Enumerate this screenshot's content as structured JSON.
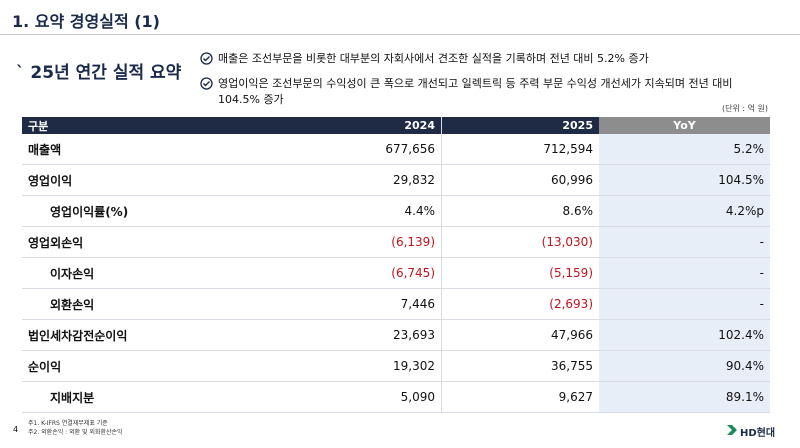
{
  "header": {
    "title": "1. 요약 경영실적 (1)"
  },
  "section": {
    "title": "` 25년 연간 실적 요약",
    "bullets": [
      "매출은 조선부문을 비롯한 대부분의 자회사에서 견조한 실적을 기록하며 전년 대비 5.2% 증가",
      "영업이익은 조선부문의 수익성이 큰 폭으로 개선되고 일렉트릭 등 주력 부문 수익성 개선세가 지속되며 전년 대비 104.5% 증가"
    ]
  },
  "unit": "(단위 : 억 원)",
  "table": {
    "columns": [
      "구분",
      "2024",
      "2025",
      "YoY"
    ],
    "rows": [
      [
        "매출액",
        "677,656",
        "712,594",
        "5.2%"
      ],
      [
        "영업이익",
        "29,832",
        "60,996",
        "104.5%"
      ],
      [
        "영업이익률(%)",
        "4.4%",
        "8.6%",
        "4.2%p"
      ],
      [
        "영업외손익",
        "(6,139)",
        "(13,030)",
        "-"
      ],
      [
        "이자손익",
        "(6,745)",
        "(5,159)",
        "-"
      ],
      [
        "외환손익",
        "7,446",
        "(2,693)",
        "-"
      ],
      [
        "법인세차감전순이익",
        "23,693",
        "47,966",
        "102.4%"
      ],
      [
        "순이익",
        "19,302",
        "36,755",
        "90.4%"
      ],
      [
        "지배지분",
        "5,090",
        "9,627",
        "89.1%"
      ]
    ]
  },
  "footnotes": [
    "주1. K-IFRS 연결재무제표 기준",
    "주2. 외환손익 : 외환 및 외화환산손익"
  ],
  "page": "4",
  "logo": "HD현대"
}
